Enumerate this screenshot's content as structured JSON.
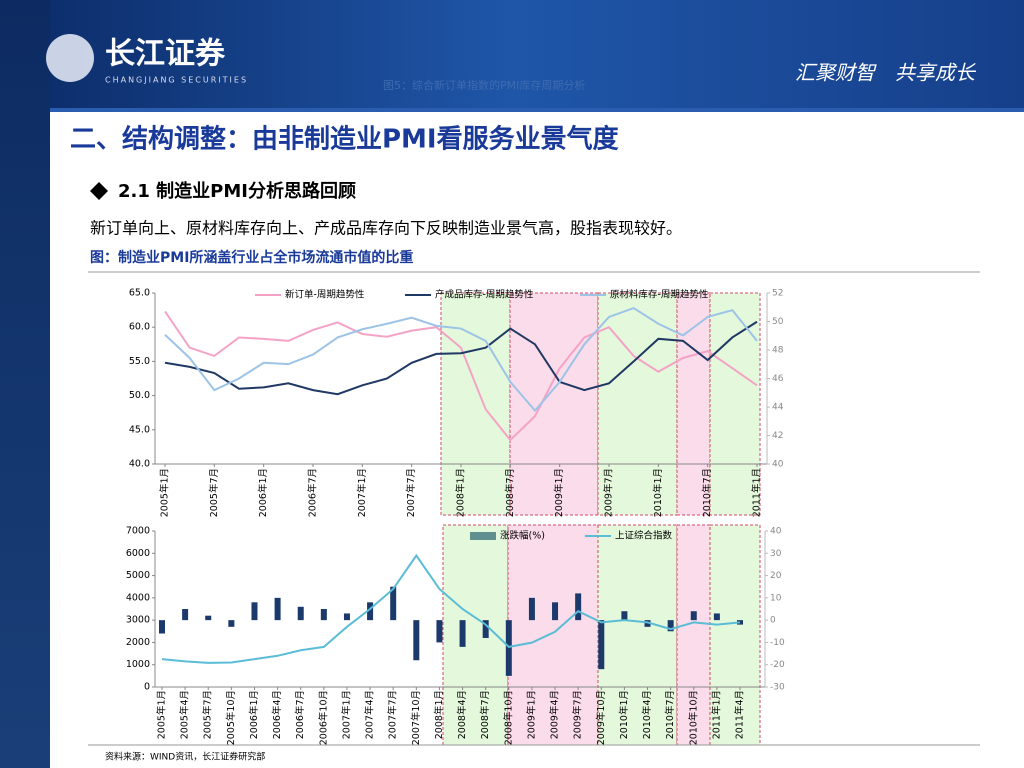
{
  "header": {
    "logo": "长江证券",
    "logo_en": "CHANGJIANG SECURITIES",
    "slogan": "汇聚财智　共享成长",
    "overlay": "图5：综合新订单指数的PMI库存周期分析"
  },
  "title": "二、结构调整：由非制造业PMI看服务业景气度",
  "section": "2.1 制造业PMI分析思路回顾",
  "body": "新订单向上、原材料库存向上、产成品库存向下反映制造业景气高，股指表现较好。",
  "caption": "图：制造业PMI所涵盖行业占全市场流通市值的比重",
  "source": "资料来源：WIND资讯，长江证券研究部",
  "chart_data": [
    {
      "type": "line",
      "categories": [
        "2005年1月",
        null,
        "2005年7月",
        null,
        "2006年1月",
        null,
        "2006年7月",
        null,
        "2007年1月",
        null,
        "2007年7月",
        null,
        "2008年1月",
        null,
        "2008年7月",
        null,
        "2009年1月",
        null,
        "2009年7月",
        null,
        "2010年1月",
        null,
        "2010年7月",
        null,
        "2011年1月"
      ],
      "series": [
        {
          "name": "新订单-周期趋势性",
          "color": "#f4a3c7",
          "values": [
            62.3,
            57,
            55.8,
            58.5,
            58.3,
            58.0,
            59.6,
            60.7,
            59.0,
            58.6,
            59.5,
            60.0,
            57,
            48,
            43.5,
            47,
            54,
            58.5,
            60.0,
            55.8,
            53.5,
            55.5,
            56.5,
            54.0,
            51.5
          ]
        },
        {
          "name": "产成品库存-周期趋势性",
          "color": "#1f3864",
          "values": [
            54.8,
            54.2,
            53.3,
            51,
            51.2,
            51.8,
            50.8,
            50.2,
            51.5,
            52.5,
            54.8,
            56.1,
            56.2,
            57.0,
            59.8,
            57.5,
            52.0,
            50.8,
            51.8,
            55.0,
            58.3,
            58.0,
            55.2,
            58.5,
            60.8
          ]
        },
        {
          "name": "原材料库存-周期趋势性",
          "color": "#9dc3e6",
          "values": [
            58.9,
            55.5,
            50.8,
            52.5,
            54.8,
            54.6,
            56.0,
            58.5,
            59.7,
            60.5,
            61.4,
            60.2,
            59.8,
            58.0,
            52.0,
            47.8,
            52.0,
            57.5,
            61.5,
            62.8,
            60.5,
            58.8,
            61.5,
            62.5,
            58.0
          ]
        }
      ],
      "ylim": [
        40,
        65
      ],
      "yticks": [
        {
          "value": 40,
          "label": "40.0"
        },
        {
          "value": 45,
          "label": "45.0"
        },
        {
          "value": 50,
          "label": "50.0"
        },
        {
          "value": 55,
          "label": "55.0"
        },
        {
          "value": 60,
          "label": "60.0"
        },
        {
          "value": 65,
          "label": "65.0"
        }
      ],
      "y2lim": [
        40,
        52
      ],
      "y2ticks": [
        40,
        42,
        44,
        46,
        48,
        50,
        52
      ]
    },
    {
      "type": "combo",
      "categories": [
        "2005年1月",
        "2005年4月",
        "2005年7月",
        "2005年10月",
        "2006年1月",
        "2006年4月",
        "2006年7月",
        "2006年10月",
        "2007年1月",
        "2007年4月",
        "2007年7月",
        "2007年10月",
        "2008年1月",
        "2008年4月",
        "2008年7月",
        "2008年10月",
        "2009年1月",
        "2009年4月",
        "2009年7月",
        "2009年10月",
        "2010年1月",
        "2010年4月",
        "2010年7月",
        "2010年10月",
        "2011年1月",
        "2011年4月"
      ],
      "series": [
        {
          "name": "涨跌幅(%)",
          "type": "bar",
          "axis": "y2",
          "color": "#1b3a6b",
          "legend_color": "#5f8f8f",
          "values": [
            -6,
            5,
            2,
            -3,
            8,
            10,
            6,
            5,
            3,
            8,
            15,
            -18,
            -10,
            -12,
            -8,
            -25,
            10,
            8,
            12,
            -22,
            4,
            -3,
            -5,
            4,
            3,
            -2
          ]
        },
        {
          "name": "上证综合指数",
          "type": "line",
          "color": "#5bbcd6",
          "values": [
            1250,
            1150,
            1080,
            1100,
            1250,
            1400,
            1650,
            1800,
            2700,
            3500,
            4400,
            5900,
            4400,
            3500,
            2800,
            1800,
            1990,
            2480,
            3400,
            2900,
            3000,
            2900,
            2600,
            2900,
            2800,
            2900
          ]
        }
      ],
      "ylim": [
        0,
        7000
      ],
      "yticks": [
        0,
        1000,
        2000,
        3000,
        4000,
        5000,
        6000,
        7000
      ],
      "y2lim": [
        -30,
        40
      ],
      "y2ticks": [
        -30,
        -20,
        -10,
        0,
        10,
        20,
        30,
        40
      ]
    }
  ]
}
